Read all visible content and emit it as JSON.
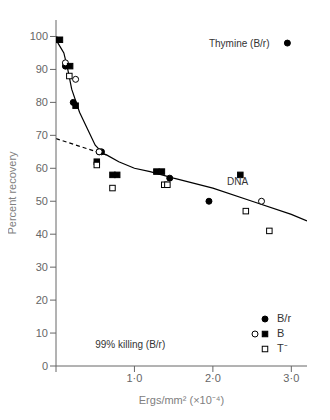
{
  "chart_data": {
    "type": "scatter",
    "xlabel": "Ergs/mm² (×10⁻⁴)",
    "ylabel": "Percent  recovery",
    "xlim": [
      0,
      3.2
    ],
    "ylim": [
      0,
      105
    ],
    "xticks": [
      {
        "value": 0,
        "label": ""
      },
      {
        "value": 1.0,
        "label": "1·0"
      },
      {
        "value": 2.0,
        "label": "2·0"
      },
      {
        "value": 3.0,
        "label": "3·0"
      }
    ],
    "yticks": [
      0,
      10,
      20,
      30,
      40,
      50,
      60,
      70,
      80,
      90,
      100
    ],
    "grid": false,
    "legend": "lower right",
    "series": [
      {
        "type": "line",
        "line_style": "solid",
        "color": "black",
        "x": [
          0.0,
          0.05,
          0.1,
          0.15,
          0.2,
          0.3,
          0.4,
          0.5,
          0.6,
          0.65,
          0.8,
          1.0,
          1.2,
          1.5,
          2.0,
          2.5,
          3.0,
          3.2
        ],
        "values": [
          99,
          97,
          95,
          90,
          84,
          77,
          72,
          67,
          64.5,
          64,
          62,
          60,
          59,
          57,
          54,
          50,
          46,
          44
        ]
      },
      {
        "type": "line",
        "line_style": "dashed",
        "color": "black",
        "x": [
          0.0,
          0.65
        ],
        "values": [
          69,
          64
        ]
      },
      {
        "name": "B/r",
        "type": "scatter",
        "marker": "circle",
        "color": "black",
        "x": [
          0.0,
          0.12,
          0.22,
          0.55,
          0.58,
          1.45,
          1.95
        ],
        "values": [
          99,
          91,
          80,
          65,
          65,
          57,
          50
        ]
      },
      {
        "type": "scatter",
        "marker": "circle",
        "color": "black",
        "x": [
          2.95
        ],
        "values": [
          98
        ]
      },
      {
        "name": "B",
        "type": "scatter",
        "marker": "open_circle",
        "color": "black",
        "x": [
          0.12,
          0.25,
          0.55,
          2.62
        ],
        "values": [
          92,
          87,
          65,
          50
        ]
      },
      {
        "name": "B",
        "type": "scatter",
        "marker": "square",
        "color": "black",
        "x": [
          0.05,
          0.18,
          0.25,
          0.52,
          0.72,
          0.78,
          1.28,
          1.35,
          2.35
        ],
        "values": [
          99,
          91,
          79,
          62,
          58,
          58,
          59,
          59,
          58
        ]
      },
      {
        "name": "T⁻",
        "type": "scatter",
        "marker": "open_square",
        "color": "black",
        "x": [
          0.17,
          0.52,
          0.72,
          1.38,
          1.42,
          2.42,
          2.72
        ],
        "values": [
          88,
          61,
          54,
          55,
          55,
          47,
          41
        ]
      }
    ],
    "annotations": [
      {
        "text": "99% killing (B/r)",
        "x": 0.5,
        "y": 6.5
      },
      {
        "text": "DNA",
        "x": 2.18,
        "y": 56
      },
      {
        "text": "Thymine (B/r)",
        "x": 1.95,
        "y": 98
      }
    ]
  }
}
